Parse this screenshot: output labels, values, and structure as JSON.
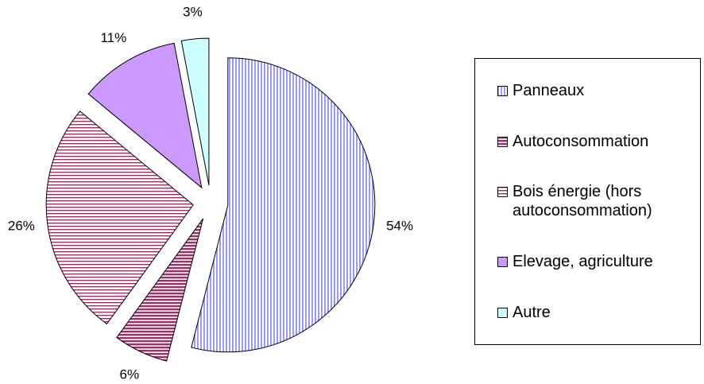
{
  "chart_data": {
    "type": "pie",
    "categories": [
      "Panneaux",
      "Autoconsommation",
      "Bois énergie (hors autoconsommation)",
      "Elevage, agriculture",
      "Autre"
    ],
    "values": [
      54,
      6,
      26,
      11,
      3
    ],
    "value_labels": [
      "54%",
      "6%",
      "26%",
      "11%",
      "3%"
    ],
    "colors": [
      "#9999ff",
      "#993366",
      "#993366",
      "#cc99ff",
      "#ccffff"
    ],
    "patterns": [
      "vertical",
      "horizontal-dense",
      "horizontal",
      "solid",
      "solid"
    ],
    "legend": "right"
  }
}
